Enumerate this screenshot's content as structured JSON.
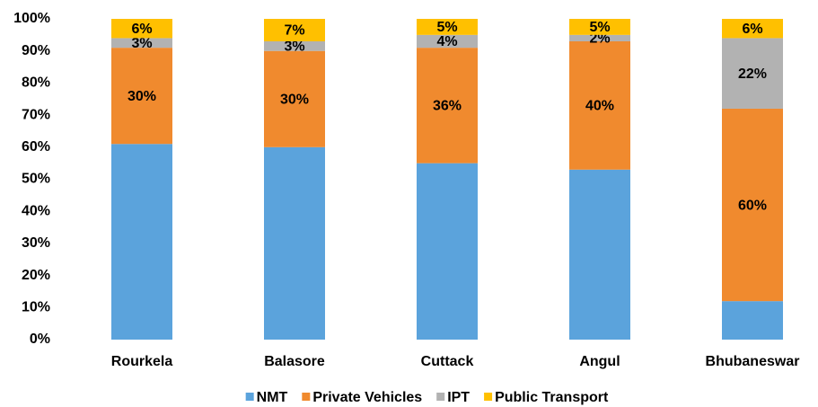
{
  "chart_data": {
    "type": "stacked_bar",
    "categories": [
      "Rourkela",
      "Balasore",
      "Cuttack",
      "Angul",
      "Bhubaneswar"
    ],
    "series": [
      {
        "name": "NMT",
        "color": "#5ba3dc",
        "values": [
          61,
          60,
          55,
          53,
          12
        ]
      },
      {
        "name": "Private Vehicles",
        "color": "#f08a2e",
        "values": [
          30,
          30,
          36,
          40,
          60
        ],
        "value_labels": [
          "30%",
          "30%",
          "36%",
          "40%",
          "60%"
        ]
      },
      {
        "name": "IPT",
        "color": "#b2b2b2",
        "values": [
          3,
          3,
          4,
          2,
          22
        ],
        "value_labels": [
          "3%",
          "3%",
          "4%",
          "2%",
          "22%"
        ]
      },
      {
        "name": "Public Transport",
        "color": "#ffc000",
        "values": [
          6,
          7,
          5,
          5,
          6
        ],
        "value_labels": [
          "6%",
          "7%",
          "5%",
          "5%",
          "6%"
        ]
      }
    ],
    "ylim": [
      0,
      100
    ],
    "yticks": [
      {
        "value": 0,
        "label": "0%"
      },
      {
        "value": 10,
        "label": "10%"
      },
      {
        "value": 20,
        "label": "20%"
      },
      {
        "value": 30,
        "label": "30%"
      },
      {
        "value": 40,
        "label": "40%"
      },
      {
        "value": 50,
        "label": "50%"
      },
      {
        "value": 60,
        "label": "60%"
      },
      {
        "value": 70,
        "label": "70%"
      },
      {
        "value": 80,
        "label": "80%"
      },
      {
        "value": 90,
        "label": "90%"
      },
      {
        "value": 100,
        "label": "100%"
      }
    ],
    "grid": false,
    "legend": "bottom"
  }
}
